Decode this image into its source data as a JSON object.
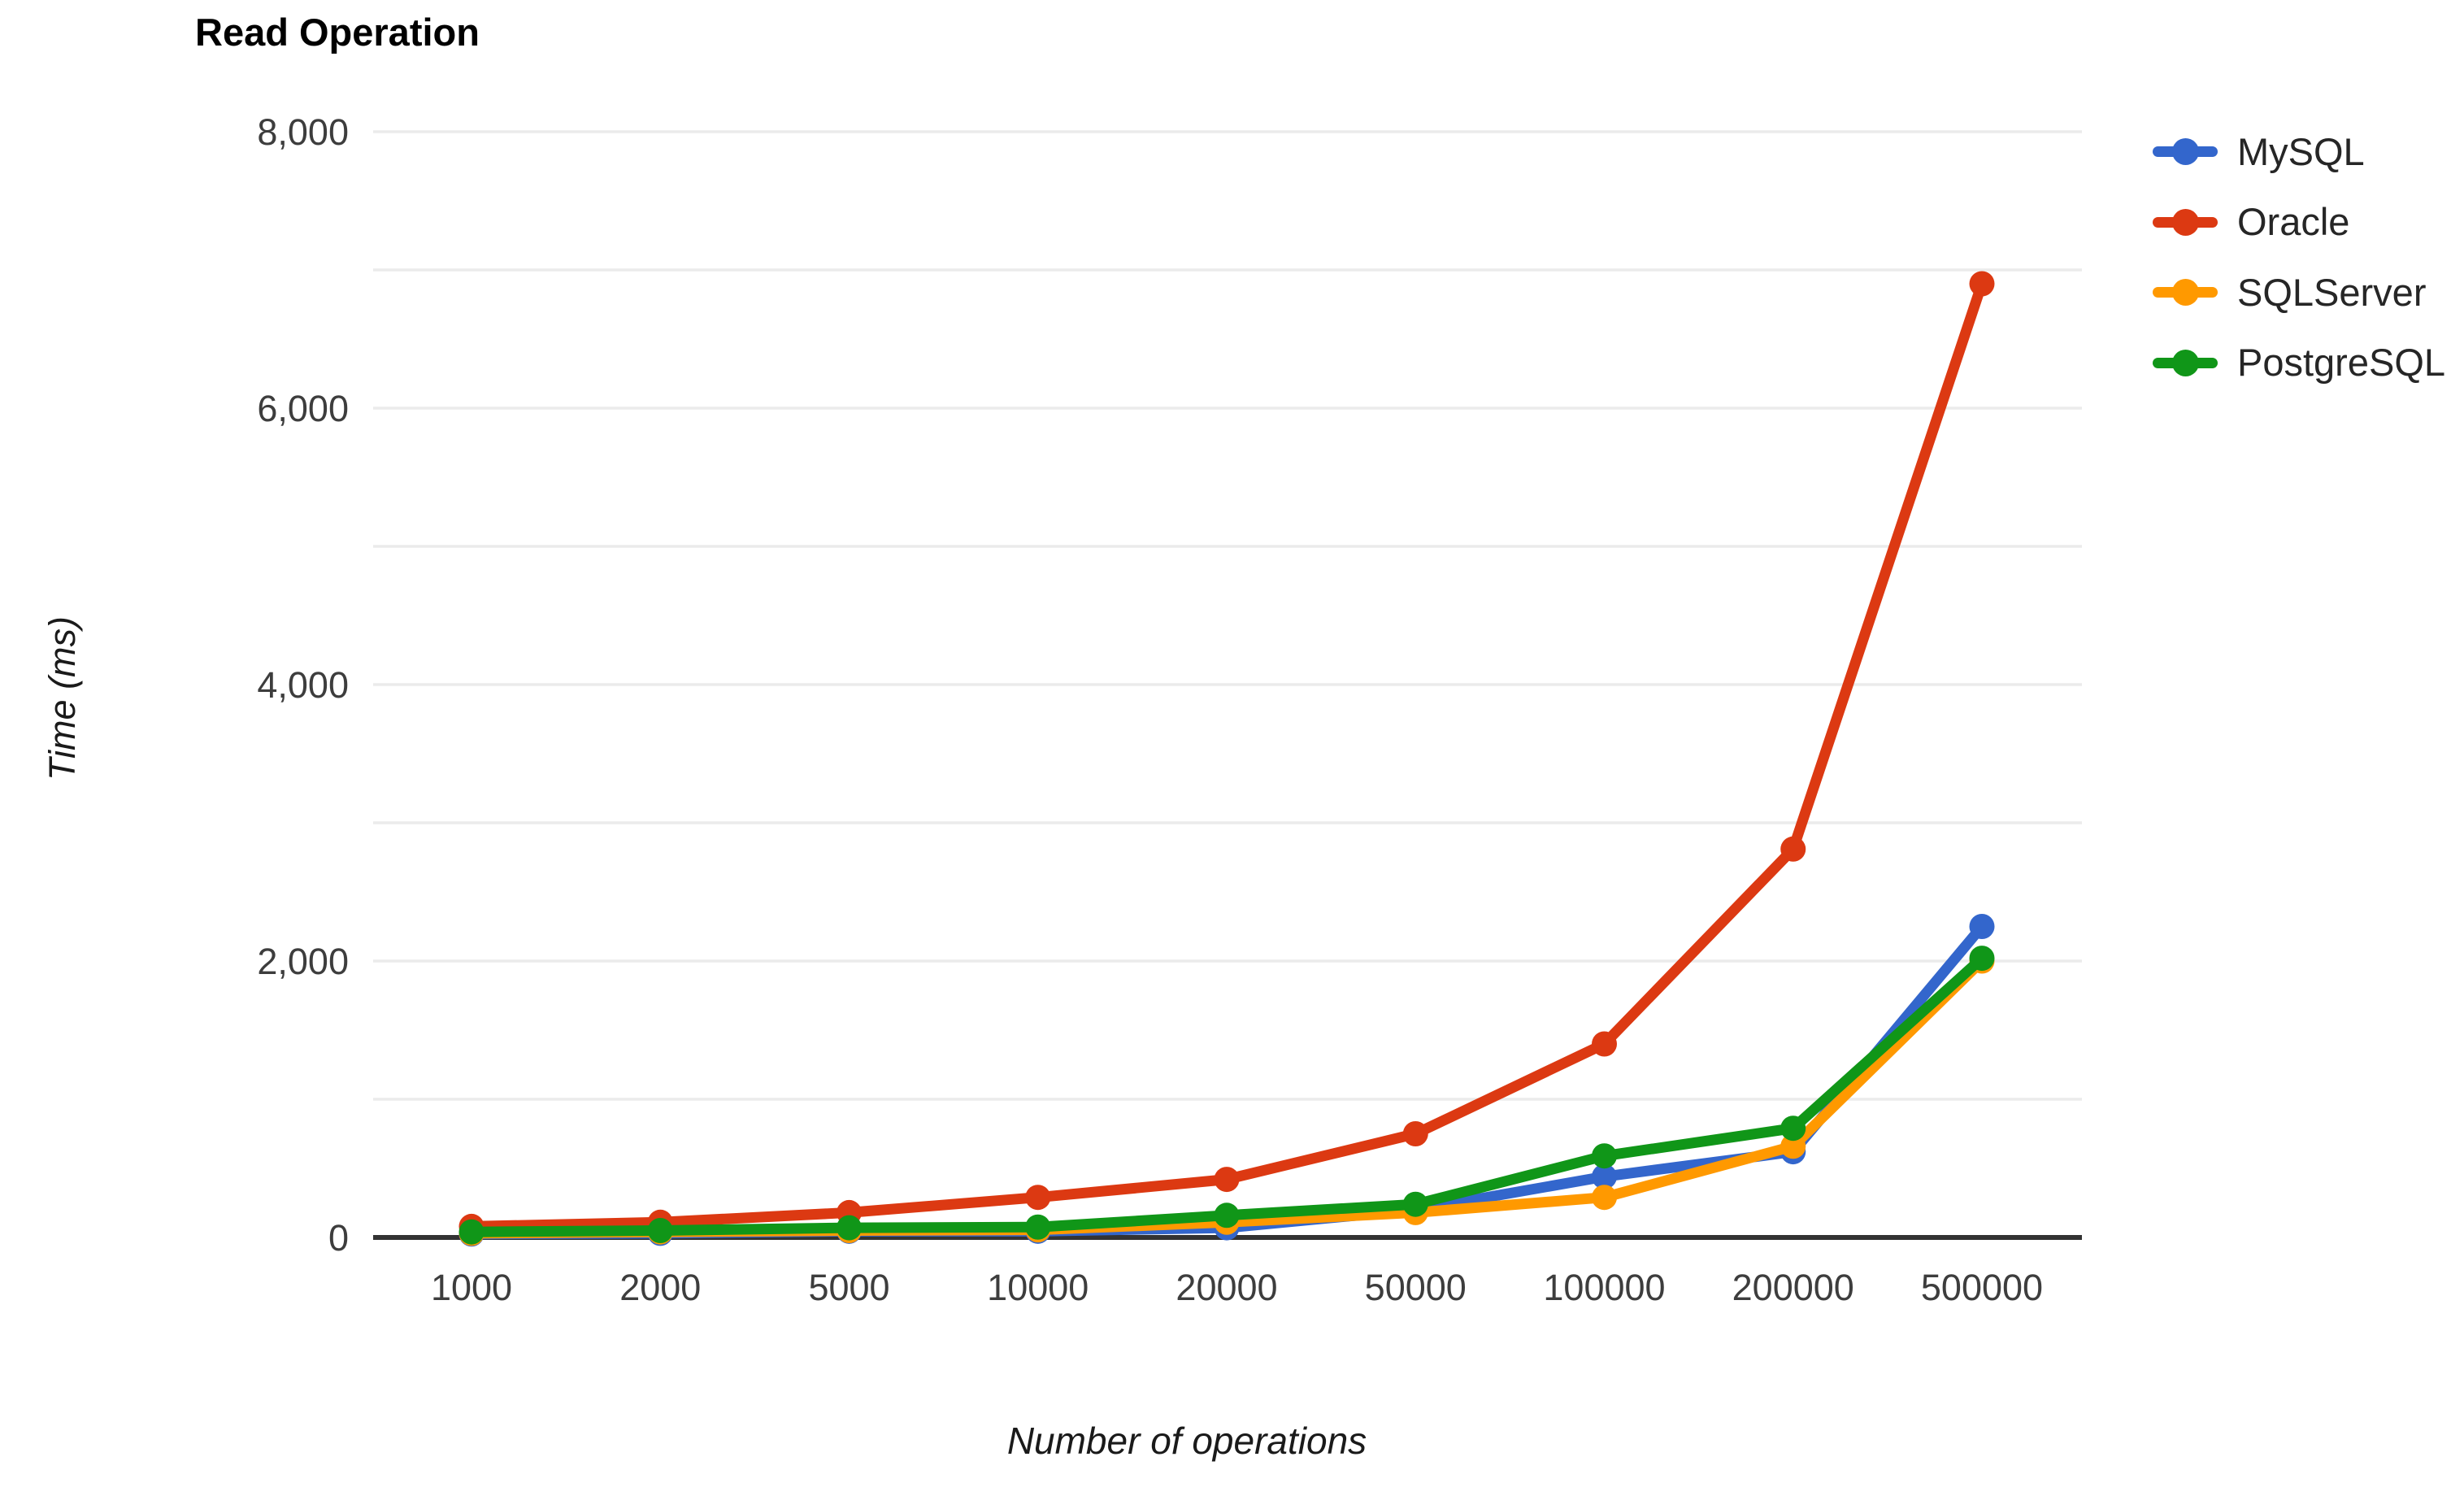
{
  "chart_data": {
    "type": "line",
    "title": "Read Operation",
    "xlabel": "Number of operations",
    "ylabel": "Time (ms)",
    "categories": [
      "1000",
      "2000",
      "5000",
      "10000",
      "20000",
      "50000",
      "100000",
      "200000",
      "500000"
    ],
    "series": [
      {
        "name": "MySQL",
        "color": "#3366CC",
        "values": [
          25,
          30,
          45,
          45,
          70,
          200,
          440,
          620,
          2250
        ]
      },
      {
        "name": "Oracle",
        "color": "#DC3912",
        "values": [
          80,
          110,
          180,
          290,
          420,
          750,
          1400,
          2810,
          6900
        ]
      },
      {
        "name": "SQLServer",
        "color": "#FF9900",
        "values": [
          30,
          40,
          50,
          55,
          110,
          180,
          290,
          660,
          2000
        ]
      },
      {
        "name": "PostgreSQL",
        "color": "#109618",
        "values": [
          40,
          50,
          70,
          75,
          160,
          240,
          590,
          790,
          2020
        ]
      }
    ],
    "ylim": [
      0,
      8000
    ],
    "y_ticks": [
      {
        "label": "0",
        "value": 0
      },
      {
        "label": "2,000",
        "value": 2000
      },
      {
        "label": "4,000",
        "value": 4000
      },
      {
        "label": "6,000",
        "value": 6000
      },
      {
        "label": "8,000",
        "value": 8000
      }
    ],
    "minor_gridline_step": 1000,
    "grid": true,
    "legend_position": "right",
    "gridline_color": "#ebebeb",
    "axis_color": "#333333",
    "tick_label_color": "#3d3d3d"
  }
}
